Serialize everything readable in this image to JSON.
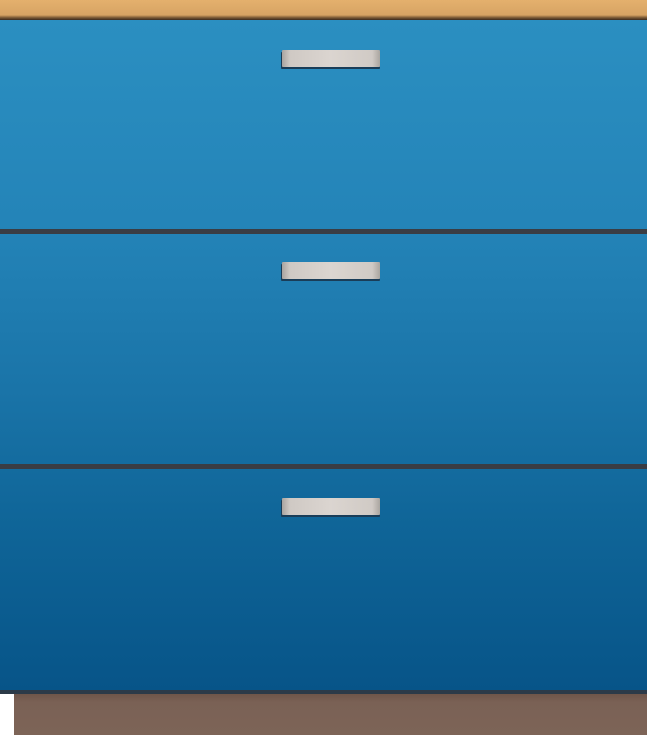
{
  "illustration": {
    "subject": "cabinet-with-three-drawers",
    "colors": {
      "countertop": "#d7a464",
      "cabinet_top": "#2b8fc1",
      "cabinet_bottom": "#075488",
      "divider": "#3a3d44",
      "handle": "#dbd5d0",
      "kickboard": "#7d6457",
      "background": "#ffffff"
    },
    "drawers": [
      {
        "handle_icon": "drawer-handle"
      },
      {
        "handle_icon": "drawer-handle"
      },
      {
        "handle_icon": "drawer-handle"
      }
    ]
  }
}
